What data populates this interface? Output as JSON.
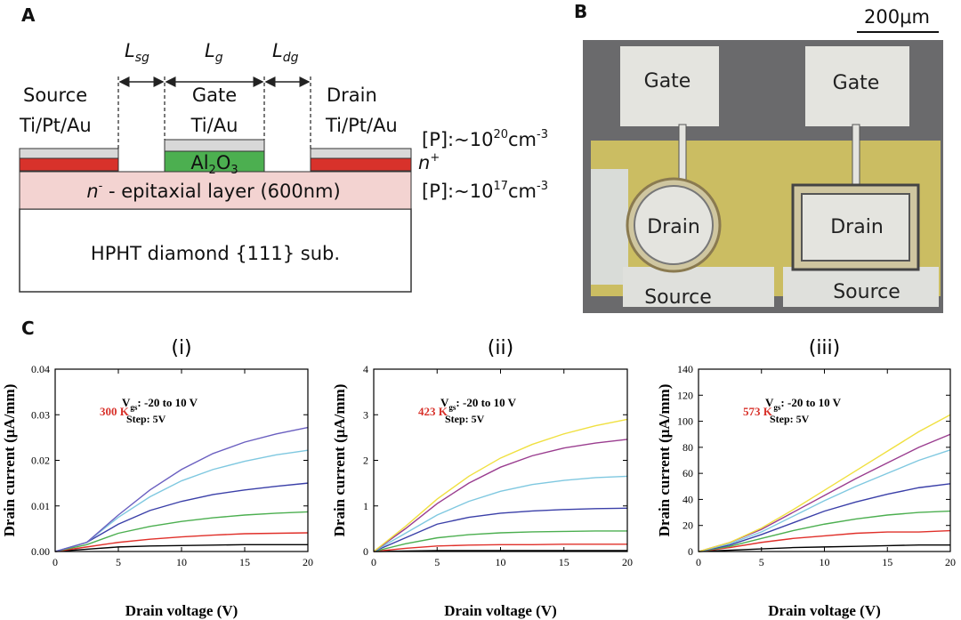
{
  "panel_a": {
    "label": "A",
    "lsg": [
      "L",
      "sg"
    ],
    "lg": [
      "L",
      "g"
    ],
    "ldg": [
      "L",
      "dg"
    ],
    "source": [
      "Source",
      "Ti/Pt/Au"
    ],
    "gate": [
      "Gate",
      "Ti/Au"
    ],
    "drain": [
      "Drain",
      "Ti/Pt/Au"
    ],
    "doping_top": [
      "[P]:~10",
      "20",
      "cm",
      "-3"
    ],
    "n_plus": [
      "n",
      "+"
    ],
    "oxide": [
      "Al",
      "2",
      "O",
      "3"
    ],
    "epi": [
      "n",
      "-",
      " - epitaxial layer (600nm)"
    ],
    "doping_epi": [
      "[P]:~10",
      "17",
      "cm",
      "-3"
    ],
    "substrate": "HPHT diamond {111} sub."
  },
  "panel_b": {
    "label": "B",
    "scale": "200μm",
    "pads": [
      "Gate",
      "Gate",
      "Drain",
      "Drain",
      "Source",
      "Source"
    ]
  },
  "panel_c_label": "C",
  "chart_data": [
    {
      "type": "line",
      "title": "(i)",
      "temperature": "300 K",
      "annotation": [
        "V",
        "gs",
        ": -20 to 10 V"
      ],
      "step": "Step: 5V",
      "xlabel": "Drain voltage (V)",
      "ylabel": "Drain current (μA/mm)",
      "x": [
        0,
        2.5,
        5,
        7.5,
        10,
        12.5,
        15,
        17.5,
        20
      ],
      "xlim": [
        0,
        20
      ],
      "xticks": [
        0,
        5,
        10,
        15,
        20
      ],
      "ylim": [
        0,
        0.04
      ],
      "yticks": [
        {
          "value": 0,
          "label": "0.00"
        },
        0.01,
        0.02,
        0.03,
        0.04
      ],
      "series": [
        {
          "color": "#000000",
          "values": [
            0,
            0.0005,
            0.001,
            0.0012,
            0.0013,
            0.0014,
            0.0015,
            0.0015,
            0.0015
          ]
        },
        {
          "color": "#e0302a",
          "values": [
            0,
            0.001,
            0.002,
            0.0027,
            0.0032,
            0.0036,
            0.0039,
            0.004,
            0.0041
          ]
        },
        {
          "color": "#4caf50",
          "values": [
            0,
            0.0015,
            0.004,
            0.0055,
            0.0066,
            0.0074,
            0.008,
            0.0084,
            0.0087
          ]
        },
        {
          "color": "#3a3fa8",
          "values": [
            0,
            0.002,
            0.006,
            0.009,
            0.011,
            0.0125,
            0.0135,
            0.0143,
            0.015
          ]
        },
        {
          "color": "#7fc8e0",
          "values": [
            0,
            0.002,
            0.0075,
            0.012,
            0.0155,
            0.018,
            0.0198,
            0.0212,
            0.0222
          ]
        },
        {
          "color": "#6a5fc0",
          "values": [
            0,
            0.002,
            0.008,
            0.0135,
            0.018,
            0.0215,
            0.024,
            0.0258,
            0.0272
          ]
        }
      ]
    },
    {
      "type": "line",
      "title": "(ii)",
      "temperature": "423 K",
      "annotation": [
        "V",
        "gs",
        ": -20 to 10 V"
      ],
      "step": "Step: 5V",
      "xlabel": "Drain voltage (V)",
      "ylabel": "Drain current (μA/mm)",
      "x": [
        0,
        2.5,
        5,
        7.5,
        10,
        12.5,
        15,
        17.5,
        20
      ],
      "xlim": [
        0,
        20
      ],
      "xticks": [
        0,
        5,
        10,
        15,
        20
      ],
      "ylim": [
        0,
        4
      ],
      "yticks": [
        0,
        1,
        2,
        3,
        4
      ],
      "series": [
        {
          "color": "#000000",
          "values": [
            0,
            0.01,
            0.02,
            0.02,
            0.02,
            0.02,
            0.02,
            0.02,
            0.02
          ]
        },
        {
          "color": "#e0302a",
          "values": [
            0,
            0.07,
            0.12,
            0.14,
            0.15,
            0.15,
            0.16,
            0.16,
            0.16
          ]
        },
        {
          "color": "#4caf50",
          "values": [
            0,
            0.17,
            0.3,
            0.37,
            0.41,
            0.43,
            0.44,
            0.45,
            0.45
          ]
        },
        {
          "color": "#3a3fa8",
          "values": [
            0,
            0.3,
            0.6,
            0.75,
            0.84,
            0.89,
            0.92,
            0.94,
            0.95
          ]
        },
        {
          "color": "#7fc8e0",
          "values": [
            0,
            0.4,
            0.8,
            1.1,
            1.32,
            1.47,
            1.56,
            1.62,
            1.65
          ]
        },
        {
          "color": "#9a3d8f",
          "values": [
            0,
            0.5,
            1.05,
            1.5,
            1.85,
            2.1,
            2.27,
            2.38,
            2.46
          ]
        },
        {
          "color": "#f0e040",
          "values": [
            0,
            0.55,
            1.15,
            1.65,
            2.05,
            2.35,
            2.58,
            2.76,
            2.9
          ]
        }
      ]
    },
    {
      "type": "line",
      "title": "(iii)",
      "temperature": "573 K",
      "annotation": [
        "V",
        "gs",
        ": -20 to 10 V"
      ],
      "step": "Step: 5V",
      "xlabel": "Drain voltage (V)",
      "ylabel": "Drain current (μA/mm)",
      "x": [
        0,
        2.5,
        5,
        7.5,
        10,
        12.5,
        15,
        17.5,
        20
      ],
      "xlim": [
        0,
        20
      ],
      "xticks": [
        0,
        5,
        10,
        15,
        20
      ],
      "ylim": [
        0,
        140
      ],
      "yticks": [
        0,
        20,
        40,
        60,
        80,
        100,
        120,
        140
      ],
      "series": [
        {
          "color": "#000000",
          "values": [
            0,
            1,
            2,
            3,
            3.5,
            4,
            4.5,
            5,
            5
          ]
        },
        {
          "color": "#e0302a",
          "values": [
            0,
            3,
            7,
            10,
            12,
            14,
            15,
            15,
            16
          ]
        },
        {
          "color": "#4caf50",
          "values": [
            0,
            4,
            10,
            16,
            21,
            25,
            28,
            30,
            31
          ]
        },
        {
          "color": "#3a3fa8",
          "values": [
            0,
            5,
            13,
            22,
            31,
            38,
            44,
            49,
            52
          ]
        },
        {
          "color": "#7fc8e0",
          "values": [
            0,
            6,
            15,
            27,
            39,
            50,
            60,
            70,
            78
          ]
        },
        {
          "color": "#9a3d8f",
          "values": [
            0,
            7,
            17,
            30,
            43,
            56,
            68,
            80,
            90
          ]
        },
        {
          "color": "#f0e040",
          "values": [
            0,
            7,
            18,
            32,
            47,
            62,
            77,
            92,
            105
          ]
        }
      ]
    }
  ]
}
